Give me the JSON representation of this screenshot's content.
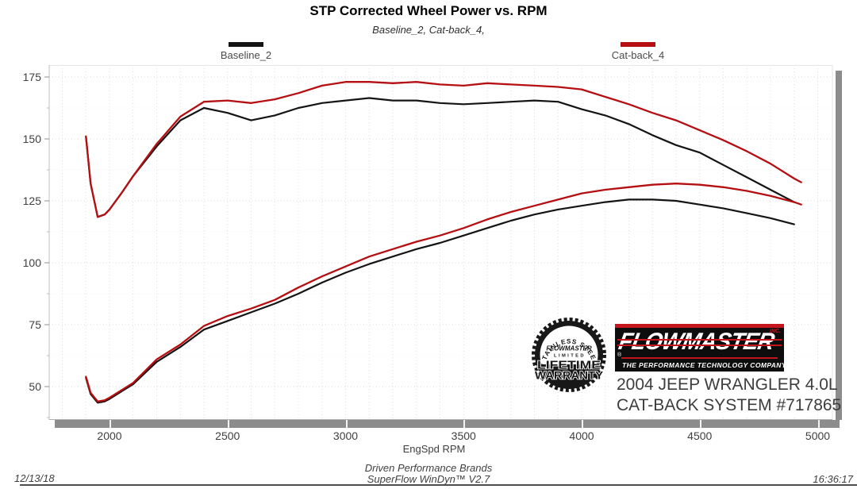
{
  "header": {
    "title": "STP Corrected Wheel Power vs. RPM",
    "subtitle": "Baseline_2, Cat-back_4,"
  },
  "legend": [
    {
      "label": "Baseline_2",
      "color": "#141414"
    },
    {
      "label": "Cat-back_4",
      "color": "#b50f12"
    }
  ],
  "chart_data": {
    "type": "line",
    "title": "STP Corrected Wheel Power vs. RPM",
    "xlabel": "EngSpd  RPM",
    "ylabel": "",
    "x_axis": {
      "ticks": [
        2000,
        2500,
        3000,
        3500,
        4000,
        4500,
        5000
      ],
      "minor_step": 100,
      "range": [
        1745,
        5065
      ]
    },
    "y_axis": {
      "ticks": [
        175,
        150,
        125,
        100,
        75,
        50
      ],
      "minor_step": 12.5,
      "range": [
        36.5,
        179.8
      ]
    },
    "grid": true,
    "legend_position": "top",
    "x": [
      1900,
      1920,
      1950,
      1980,
      2000,
      2050,
      2100,
      2200,
      2300,
      2400,
      2500,
      2600,
      2700,
      2800,
      2900,
      3000,
      3100,
      3200,
      3300,
      3400,
      3500,
      3600,
      3700,
      3800,
      3900,
      4000,
      4100,
      4200,
      4300,
      4400,
      4500,
      4600,
      4700,
      4800,
      4900,
      4930
    ],
    "series": [
      {
        "name": "Baseline_2 torque",
        "color": "#141414",
        "width": 2.2,
        "values": [
          151,
          132,
          118.5,
          119.5,
          121.5,
          128,
          135,
          147,
          157.5,
          162.5,
          160.5,
          157.5,
          159.5,
          162.5,
          164.5,
          165.5,
          166.5,
          165.5,
          165.5,
          164.5,
          164,
          164.5,
          165,
          165.5,
          165,
          162,
          159.5,
          156,
          151.5,
          147.5,
          144.5,
          139.5,
          134.5,
          129.5,
          124.5,
          null
        ]
      },
      {
        "name": "Cat-back_4 torque",
        "color": "#b50f12",
        "width": 2.3,
        "values": [
          151,
          132,
          118.5,
          119.5,
          121.5,
          128,
          135,
          148,
          159,
          165,
          165.5,
          164.5,
          166,
          168.5,
          171.5,
          173,
          173,
          172.5,
          173,
          172,
          171.5,
          172.5,
          172,
          171.5,
          171,
          170,
          167,
          164,
          160.5,
          157.5,
          153.5,
          149.5,
          145,
          140,
          134,
          132.5
        ]
      },
      {
        "name": "Baseline_2 power",
        "color": "#141414",
        "width": 2.2,
        "values": [
          53.5,
          47,
          43.5,
          44,
          45,
          48,
          51,
          60,
          66,
          73,
          76.5,
          80,
          83.5,
          87.5,
          92,
          96,
          99.5,
          102.5,
          105.5,
          108,
          111,
          114,
          117,
          119.5,
          121.5,
          123,
          124.5,
          125.5,
          125.5,
          125,
          123.5,
          122,
          120,
          118,
          115.5,
          null
        ]
      },
      {
        "name": "Cat-back_4 power",
        "color": "#b50f12",
        "width": 2.3,
        "values": [
          54,
          47.5,
          44,
          44.5,
          45.5,
          48.5,
          51.5,
          61,
          67,
          74.5,
          78.5,
          81.5,
          85,
          90,
          94.5,
          98.5,
          102.5,
          105.5,
          108.5,
          111,
          114,
          117.5,
          120.5,
          123,
          125.5,
          128,
          129.5,
          130.5,
          131.5,
          132,
          131.5,
          130.5,
          129,
          127,
          124.5,
          123.5
        ]
      }
    ]
  },
  "branding": {
    "badge": {
      "arc_text": "STAINLESS STEEL",
      "script": "FLOWMASTER",
      "limited": "LIMITED",
      "line1": "LIFETIME",
      "line2": "WARRANTY"
    },
    "logo": {
      "wordmark": "FLOWMASTER",
      "inc": "INC.",
      "reg": "®",
      "tagline": "THE PERFORMANCE TECHNOLOGY COMPANY",
      "red": "#c4161c"
    },
    "vehicle_line1": "2004 JEEP WRANGLER 4.0L",
    "vehicle_line2": "CAT-BACK SYSTEM #717865"
  },
  "footer": {
    "date": "12/13/18",
    "center_line1": "Driven Performance Brands",
    "center_line2": "SuperFlow WinDyn™ V2.7",
    "time": "16:36:17"
  }
}
